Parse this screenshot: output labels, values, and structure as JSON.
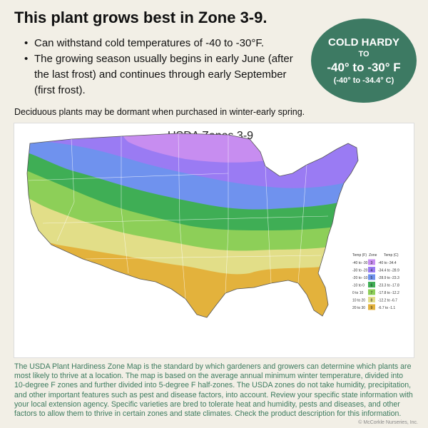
{
  "header": {
    "title": "This plant grows best in Zone 3-9.",
    "bullets": [
      "Can withstand cold temperatures of -40 to -30°F.",
      "The growing season usually begins in early June (after the last frost) and continues through early September (first frost)."
    ]
  },
  "badge": {
    "line1": "COLD HARDY",
    "line2": "TO",
    "line3": "-40° to -30° F",
    "line4": "(-40° to -34.4° C)",
    "color": "#3d7a63"
  },
  "note": "Deciduous plants may be dormant when purchased in winter-early spring.",
  "map": {
    "title": "USDA Zones 3-9",
    "legend_headers": [
      "Temp (F)",
      "Zone",
      "Temp (C)"
    ],
    "zones": [
      {
        "temp_f": "-40 to -30",
        "zone": "3",
        "temp_c": "-40 to -34.4",
        "color": "#c78df0"
      },
      {
        "temp_f": "-30 to -20",
        "zone": "4",
        "temp_c": "-34.4 to -28.9",
        "color": "#9a7bf3"
      },
      {
        "temp_f": "-20 to -10",
        "zone": "5",
        "temp_c": "-28.9 to -23.3",
        "color": "#6f92ee"
      },
      {
        "temp_f": "-10 to 0",
        "zone": "6",
        "temp_c": "-23.3 to -17.8",
        "color": "#3fae55"
      },
      {
        "temp_f": "0 to 10",
        "zone": "7",
        "temp_c": "-17.8 to -12.2",
        "color": "#8dcf58"
      },
      {
        "temp_f": "10 to 20",
        "zone": "8",
        "temp_c": "-12.2 to -6.7",
        "color": "#e2de88"
      },
      {
        "temp_f": "20 to 30",
        "zone": "9",
        "temp_c": "-6.7 to -1.1",
        "color": "#e3b23c"
      }
    ]
  },
  "description": "The USDA Plant Hardiness Zone Map is the standard by which gardeners and growers can determine which plants are most likely to thrive at a location. The map is based on the average annual minimum winter temperature, divided into 10-degree F zones and further divided into 5-degree F half-zones. The USDA zones do not take humidity, precipitation, and other important features such as pest and disease factors, into account. Review your specific state information with your local extension agency. Specific varieties are bred to tolerate heat and humidity, pests and diseases, and other factors to allow them to thrive in certain zones and state climates. Check the product description for this information.",
  "credit": "© McCorkle Nurseries, Inc."
}
